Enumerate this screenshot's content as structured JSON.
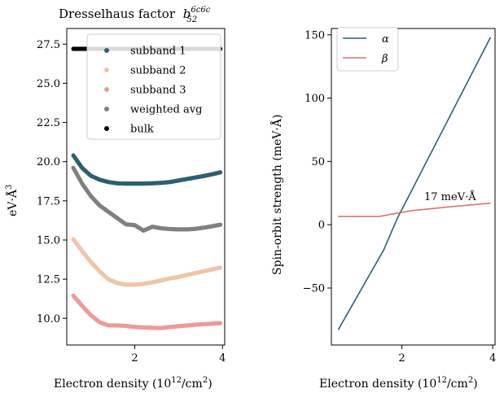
{
  "chart_data": [
    {
      "type": "scatter",
      "title": "Dresselhaus factor",
      "title_symbol": {
        "base": "b",
        "sub": "52",
        "sup": "6c6c"
      },
      "xlabel": "Electron density (10",
      "xlabel_sup": "12",
      "xlabel_unit": "/cm",
      "xlabel_sup2": "2",
      "xlabel_close": ")",
      "ylabel": "eV·Å",
      "ylabel_sup": "3",
      "xlim": [
        0.45,
        4.05
      ],
      "ylim": [
        8.3,
        28.5
      ],
      "xticks": [
        2,
        4
      ],
      "yticks": [
        10.0,
        12.5,
        15.0,
        17.5,
        20.0,
        22.5,
        25.0,
        27.5
      ],
      "ytick_labels": [
        "10.0",
        "12.5",
        "15.0",
        "17.5",
        "20.0",
        "22.5",
        "25.0",
        "27.5"
      ],
      "legend_position": "top-right",
      "series": [
        {
          "name": "subband 1",
          "color": "#2e5f73",
          "x": [
            0.6,
            0.8,
            1.0,
            1.2,
            1.4,
            1.6,
            1.8,
            2.0,
            2.2,
            2.4,
            2.6,
            2.8,
            3.0,
            3.2,
            3.4,
            3.6,
            3.8,
            3.95
          ],
          "y": [
            20.4,
            19.6,
            19.1,
            18.85,
            18.7,
            18.62,
            18.6,
            18.6,
            18.6,
            18.62,
            18.65,
            18.7,
            18.8,
            18.9,
            19.0,
            19.1,
            19.22,
            19.32
          ]
        },
        {
          "name": "subband 2",
          "color": "#f0c4a8",
          "x": [
            0.6,
            0.8,
            1.0,
            1.2,
            1.4,
            1.6,
            1.8,
            2.0,
            2.2,
            2.4,
            2.6,
            2.8,
            3.0,
            3.2,
            3.4,
            3.6,
            3.8,
            3.95
          ],
          "y": [
            15.05,
            14.3,
            13.6,
            13.0,
            12.5,
            12.25,
            12.15,
            12.15,
            12.2,
            12.3,
            12.42,
            12.55,
            12.65,
            12.78,
            12.9,
            13.02,
            13.15,
            13.25
          ]
        },
        {
          "name": "subband 3",
          "color": "#ee9a96",
          "x": [
            0.6,
            0.8,
            1.0,
            1.2,
            1.4,
            1.6,
            1.8,
            2.0,
            2.2,
            2.4,
            2.6,
            2.8,
            3.0,
            3.2,
            3.4,
            3.6,
            3.8,
            3.95
          ],
          "y": [
            11.45,
            10.8,
            10.2,
            9.75,
            9.55,
            9.55,
            9.52,
            9.45,
            9.42,
            9.4,
            9.38,
            9.45,
            9.5,
            9.55,
            9.6,
            9.63,
            9.67,
            9.7
          ]
        },
        {
          "name": "weighted avg",
          "color": "#808080",
          "x": [
            0.6,
            0.8,
            1.0,
            1.2,
            1.4,
            1.6,
            1.8,
            2.0,
            2.2,
            2.4,
            2.6,
            2.8,
            3.0,
            3.2,
            3.4,
            3.6,
            3.8,
            3.95
          ],
          "y": [
            19.6,
            18.6,
            17.8,
            17.2,
            16.8,
            16.4,
            16.0,
            15.95,
            15.6,
            15.85,
            15.75,
            15.7,
            15.68,
            15.68,
            15.72,
            15.8,
            15.9,
            15.98
          ]
        },
        {
          "name": "bulk",
          "color": "#000000",
          "x": [
            0.6,
            3.95
          ],
          "y": [
            27.2,
            27.2
          ]
        }
      ]
    },
    {
      "type": "line",
      "xlabel": "Electron density (10",
      "xlabel_sup": "12",
      "xlabel_unit": "/cm",
      "xlabel_sup2": "2",
      "xlabel_close": ")",
      "ylabel": "Spin-orbit strength (meV·Å)",
      "xlim": [
        0.45,
        4.05
      ],
      "ylim": [
        -95,
        155
      ],
      "xticks": [
        2,
        4
      ],
      "yticks": [
        -50,
        0,
        50,
        100,
        150
      ],
      "ytick_labels": [
        "−50",
        "0",
        "50",
        "100",
        "150"
      ],
      "legend_position": "top-left",
      "annotation": "17 meV·Å",
      "series": [
        {
          "name": "α",
          "color": "#2e5f73",
          "x": [
            0.6,
            1.6,
            1.9,
            3.95
          ],
          "y": [
            -83,
            -20,
            5,
            148
          ]
        },
        {
          "name": "β",
          "color": "#d9746f",
          "x": [
            0.6,
            1.0,
            1.5,
            1.8,
            2.2,
            3.0,
            3.95
          ],
          "y": [
            6.5,
            6.5,
            6.5,
            8.5,
            11,
            14,
            17
          ]
        }
      ]
    }
  ]
}
